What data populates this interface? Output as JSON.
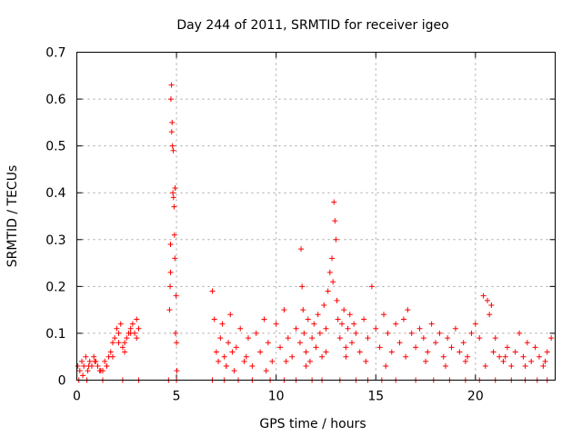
{
  "chart_data": {
    "type": "scatter",
    "title": "Day 244 of 2011, SRMTID for receiver igeo",
    "xlabel": "GPS time / hours",
    "ylabel": "SRMTID / TECUs",
    "xlim": [
      0,
      24
    ],
    "ylim": [
      0,
      0.7
    ],
    "xticks": [
      0,
      5,
      10,
      15,
      20
    ],
    "xtick_labels": [
      "0",
      "5",
      "10",
      "15",
      "20"
    ],
    "yticks": [
      0,
      0.1,
      0.2,
      0.3,
      0.4,
      0.5,
      0.6,
      0.7
    ],
    "ytick_labels": [
      "0",
      "0.1",
      "0.2",
      "0.3",
      "0.4",
      "0.5",
      "0.6",
      "0.7"
    ],
    "grid": true,
    "marker": "plus",
    "color": "#ff0000",
    "series": [
      {
        "name": "SRMTID",
        "x": [
          0.05,
          0.15,
          0.25,
          0.35,
          0.45,
          0.55,
          0.65,
          0.75,
          0.85,
          0.95,
          1.05,
          1.15,
          1.3,
          1.4,
          1.5,
          1.6,
          1.7,
          1.8,
          1.9,
          2.0,
          2.1,
          2.2,
          2.3,
          2.4,
          2.5,
          2.6,
          2.7,
          2.8,
          2.9,
          3.0,
          3.1,
          0.3,
          0.6,
          0.9,
          1.2,
          1.5,
          1.8,
          2.1,
          2.4,
          2.7,
          3.0,
          4.65,
          4.68,
          4.7,
          4.72,
          4.75,
          4.78,
          4.8,
          4.82,
          4.85,
          4.88,
          4.9,
          4.92,
          4.95,
          4.98,
          5.0,
          5.02,
          4.7,
          4.76,
          4.84,
          4.93,
          6.8,
          6.9,
          7.0,
          7.1,
          7.2,
          7.3,
          7.4,
          7.5,
          7.6,
          7.7,
          7.8,
          7.9,
          8.0,
          8.2,
          8.4,
          8.6,
          8.8,
          9.0,
          9.2,
          9.4,
          9.6,
          9.8,
          10.0,
          10.2,
          10.4,
          10.6,
          10.8,
          11.0,
          11.2,
          11.25,
          11.3,
          11.35,
          11.4,
          11.5,
          11.6,
          11.7,
          11.8,
          11.9,
          12.0,
          12.1,
          12.2,
          12.3,
          12.4,
          12.5,
          12.6,
          12.7,
          12.8,
          12.85,
          12.9,
          12.95,
          13.0,
          13.05,
          13.1,
          13.2,
          13.3,
          13.4,
          13.5,
          13.6,
          13.7,
          13.8,
          13.9,
          14.0,
          14.2,
          14.4,
          14.6,
          14.8,
          15.0,
          15.2,
          15.4,
          15.6,
          15.8,
          16.0,
          16.2,
          16.4,
          16.6,
          16.8,
          17.0,
          17.2,
          17.4,
          17.6,
          17.8,
          18.0,
          18.2,
          18.4,
          18.6,
          18.8,
          19.0,
          19.2,
          19.4,
          19.6,
          19.8,
          20.0,
          20.2,
          20.4,
          20.6,
          20.7,
          20.8,
          20.9,
          21.0,
          21.2,
          21.4,
          21.6,
          21.8,
          22.0,
          22.2,
          22.4,
          22.6,
          22.8,
          23.0,
          23.2,
          23.4,
          23.6,
          23.8,
          7.5,
          8.5,
          9.5,
          10.5,
          11.5,
          12.5,
          13.5,
          14.5,
          15.5,
          16.5,
          17.5,
          18.5,
          19.5,
          20.5,
          21.5,
          22.5,
          23.5,
          0.1,
          0.5,
          1.3,
          2.3,
          3.1,
          4.6,
          5.0,
          6.8,
          7.4,
          8.1,
          8.8,
          9.7,
          10.4,
          11.0,
          11.8,
          12.3,
          13.2,
          14.0,
          14.6,
          15.3,
          16.0,
          17.0,
          17.9,
          18.7,
          19.5,
          20.2,
          21.0,
          21.8,
          22.5,
          23.1,
          23.6
        ],
        "y": [
          0.03,
          0.02,
          0.04,
          0.03,
          0.05,
          0.02,
          0.04,
          0.03,
          0.05,
          0.04,
          0.03,
          0.02,
          0.02,
          0.04,
          0.03,
          0.05,
          0.06,
          0.08,
          0.09,
          0.11,
          0.1,
          0.12,
          0.07,
          0.08,
          0.09,
          0.1,
          0.11,
          0.12,
          0.1,
          0.13,
          0.11,
          0.01,
          0.03,
          0.04,
          0.02,
          0.03,
          0.05,
          0.08,
          0.06,
          0.1,
          0.09,
          0.15,
          0.2,
          0.29,
          0.6,
          0.63,
          0.55,
          0.5,
          0.4,
          0.39,
          0.37,
          0.31,
          0.26,
          0.1,
          0.18,
          0.08,
          0.02,
          0.23,
          0.53,
          0.49,
          0.41,
          0.19,
          0.13,
          0.06,
          0.04,
          0.09,
          0.12,
          0.05,
          0.03,
          0.08,
          0.14,
          0.06,
          0.02,
          0.07,
          0.11,
          0.04,
          0.09,
          0.03,
          0.1,
          0.06,
          0.13,
          0.08,
          0.04,
          0.12,
          0.07,
          0.15,
          0.09,
          0.05,
          0.11,
          0.08,
          0.28,
          0.2,
          0.15,
          0.1,
          0.06,
          0.13,
          0.04,
          0.09,
          0.12,
          0.07,
          0.14,
          0.1,
          0.05,
          0.16,
          0.11,
          0.19,
          0.23,
          0.26,
          0.21,
          0.38,
          0.34,
          0.3,
          0.17,
          0.13,
          0.09,
          0.12,
          0.15,
          0.07,
          0.11,
          0.14,
          0.08,
          0.12,
          0.1,
          0.06,
          0.13,
          0.09,
          0.2,
          0.11,
          0.07,
          0.14,
          0.1,
          0.06,
          0.12,
          0.08,
          0.13,
          0.15,
          0.1,
          0.07,
          0.11,
          0.09,
          0.06,
          0.12,
          0.08,
          0.1,
          0.05,
          0.09,
          0.07,
          0.11,
          0.06,
          0.08,
          0.05,
          0.1,
          0.12,
          0.09,
          0.18,
          0.17,
          0.14,
          0.16,
          0.06,
          0.09,
          0.05,
          0.04,
          0.07,
          0.03,
          0.06,
          0.1,
          0.05,
          0.08,
          0.04,
          0.07,
          0.05,
          0.03,
          0.06,
          0.09,
          0.03,
          0.05,
          0.02,
          0.04,
          0.03,
          0.06,
          0.05,
          0.04,
          0.03,
          0.05,
          0.04,
          0.03,
          0.04,
          0.03,
          0.05,
          0.03,
          0.04,
          0.0,
          0.0,
          0.0,
          0.0,
          0.0,
          0.0,
          0.0,
          0.0,
          0.0,
          0.0,
          0.0,
          0.0,
          0.0,
          0.0,
          0.0,
          0.0,
          0.0,
          0.0,
          0.0,
          0.0,
          0.0,
          0.0,
          0.0,
          0.0,
          0.0,
          0.0,
          0.0,
          0.0,
          0.0,
          0.0,
          0.0
        ]
      }
    ]
  }
}
